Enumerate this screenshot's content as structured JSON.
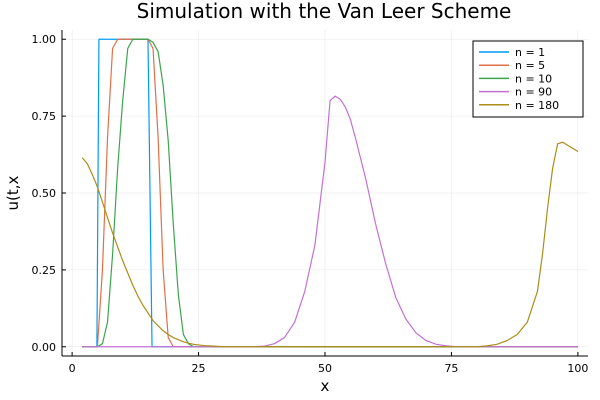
{
  "chart_data": {
    "type": "line",
    "title": "Simulation with the Van Leer Scheme",
    "xlabel": "x",
    "ylabel": "u(t,x",
    "xlim": [
      -2,
      102
    ],
    "ylim": [
      -0.03,
      1.03
    ],
    "xticks": [
      0,
      25,
      50,
      75,
      100
    ],
    "yticks": [
      0.0,
      0.25,
      0.5,
      0.75,
      1.0
    ],
    "xtick_labels": [
      "0",
      "25",
      "50",
      "75",
      "100"
    ],
    "ytick_labels": [
      "0.00",
      "0.25",
      "0.50",
      "0.75",
      "1.00"
    ],
    "grid": true,
    "legend_position": "top-right",
    "series": [
      {
        "name": "n = 1",
        "color": "#009af9",
        "points": [
          [
            2,
            0
          ],
          [
            4,
            0
          ],
          [
            4.9,
            0
          ],
          [
            5.3,
            1
          ],
          [
            15,
            1
          ],
          [
            15.8,
            0
          ],
          [
            18,
            0
          ],
          [
            100,
            0
          ]
        ]
      },
      {
        "name": "n = 5",
        "color": "#e26f46",
        "points": [
          [
            2,
            0
          ],
          [
            4,
            0
          ],
          [
            5,
            0
          ],
          [
            6,
            0.25
          ],
          [
            7,
            0.68
          ],
          [
            8,
            0.97
          ],
          [
            9,
            1
          ],
          [
            10,
            1
          ],
          [
            12,
            1
          ],
          [
            14,
            1
          ],
          [
            15,
            1
          ],
          [
            16,
            0.97
          ],
          [
            17,
            0.68
          ],
          [
            18,
            0.25
          ],
          [
            19,
            0.03
          ],
          [
            20,
            0
          ],
          [
            100,
            0
          ]
        ]
      },
      {
        "name": "n = 10",
        "color": "#3da44d",
        "points": [
          [
            2,
            0
          ],
          [
            5,
            0
          ],
          [
            6,
            0.01
          ],
          [
            7,
            0.08
          ],
          [
            8,
            0.3
          ],
          [
            9,
            0.58
          ],
          [
            10,
            0.8
          ],
          [
            11,
            0.97
          ],
          [
            12,
            1
          ],
          [
            13,
            1
          ],
          [
            15,
            1
          ],
          [
            16,
            0.99
          ],
          [
            17,
            0.96
          ],
          [
            18,
            0.85
          ],
          [
            19,
            0.67
          ],
          [
            20,
            0.4
          ],
          [
            21,
            0.17
          ],
          [
            22,
            0.04
          ],
          [
            23,
            0.01
          ],
          [
            24,
            0
          ],
          [
            100,
            0
          ]
        ]
      },
      {
        "name": "n = 90",
        "color": "#c271d2",
        "points": [
          [
            2,
            0
          ],
          [
            36,
            0
          ],
          [
            38,
            0.002
          ],
          [
            40,
            0.01
          ],
          [
            42,
            0.03
          ],
          [
            44,
            0.08
          ],
          [
            46,
            0.18
          ],
          [
            48,
            0.33
          ],
          [
            50,
            0.6
          ],
          [
            51,
            0.8
          ],
          [
            52,
            0.815
          ],
          [
            53,
            0.805
          ],
          [
            54,
            0.78
          ],
          [
            55,
            0.74
          ],
          [
            56,
            0.68
          ],
          [
            58,
            0.55
          ],
          [
            60,
            0.4
          ],
          [
            62,
            0.27
          ],
          [
            64,
            0.16
          ],
          [
            66,
            0.09
          ],
          [
            68,
            0.045
          ],
          [
            70,
            0.02
          ],
          [
            72,
            0.008
          ],
          [
            74,
            0.003
          ],
          [
            76,
            0
          ],
          [
            100,
            0
          ]
        ]
      },
      {
        "name": "n = 180",
        "color": "#ac8d18",
        "points": [
          [
            2,
            0.615
          ],
          [
            3,
            0.595
          ],
          [
            4,
            0.56
          ],
          [
            5,
            0.52
          ],
          [
            6,
            0.47
          ],
          [
            7,
            0.42
          ],
          [
            8,
            0.37
          ],
          [
            9,
            0.325
          ],
          [
            10,
            0.28
          ],
          [
            11,
            0.24
          ],
          [
            12,
            0.2
          ],
          [
            13,
            0.165
          ],
          [
            14,
            0.135
          ],
          [
            15,
            0.11
          ],
          [
            16,
            0.085
          ],
          [
            17,
            0.068
          ],
          [
            18,
            0.052
          ],
          [
            19,
            0.04
          ],
          [
            20,
            0.03
          ],
          [
            22,
            0.016
          ],
          [
            24,
            0.008
          ],
          [
            26,
            0.004
          ],
          [
            28,
            0.002
          ],
          [
            30,
            0
          ],
          [
            80,
            0
          ],
          [
            82,
            0.003
          ],
          [
            84,
            0.008
          ],
          [
            86,
            0.02
          ],
          [
            88,
            0.04
          ],
          [
            90,
            0.08
          ],
          [
            92,
            0.18
          ],
          [
            93,
            0.3
          ],
          [
            94,
            0.45
          ],
          [
            95,
            0.58
          ],
          [
            96,
            0.66
          ],
          [
            97,
            0.665
          ],
          [
            98,
            0.655
          ],
          [
            99,
            0.645
          ],
          [
            100,
            0.635
          ]
        ]
      }
    ]
  },
  "colors": {
    "background": "#ffffff",
    "axis": "#000000"
  }
}
